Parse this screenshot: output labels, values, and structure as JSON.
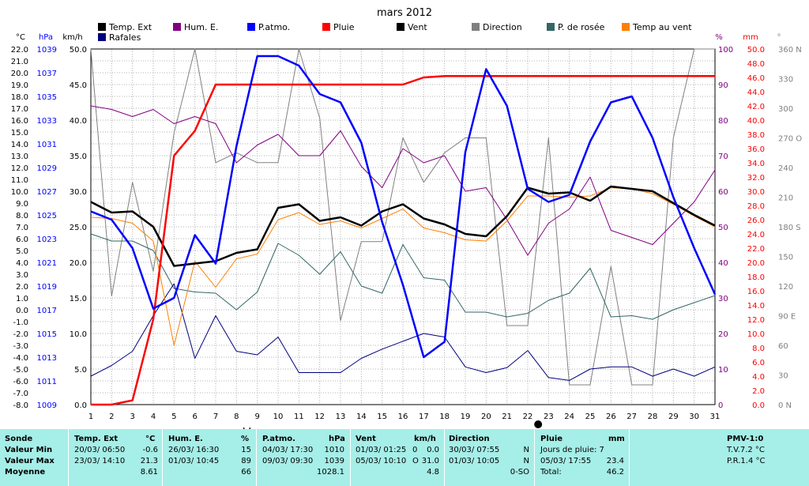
{
  "chart_data": {
    "type": "line",
    "title": "mars 2012",
    "x": [
      1,
      2,
      3,
      4,
      5,
      6,
      7,
      8,
      9,
      10,
      11,
      12,
      13,
      14,
      15,
      16,
      17,
      18,
      19,
      20,
      21,
      22,
      23,
      24,
      25,
      26,
      27,
      28,
      29,
      30,
      31
    ],
    "axes": {
      "temp_c": {
        "label": "°C",
        "range": [
          -8,
          22
        ],
        "ticks": [
          "22.0",
          "21.0",
          "20.0",
          "19.0",
          "18.0",
          "17.0",
          "16.0",
          "15.0",
          "14.0",
          "13.0",
          "12.0",
          "11.0",
          "10.0",
          "9.0",
          "8.0",
          "7.0",
          "6.0",
          "5.0",
          "4.0",
          "3.0",
          "2.0",
          "1.0",
          "0.0",
          "-1.0",
          "-2.0",
          "-3.0",
          "-4.0",
          "-5.0",
          "-6.0",
          "-7.0",
          "-8.0"
        ]
      },
      "press_hpa": {
        "label": "hPa",
        "range": [
          1009,
          1039
        ],
        "ticks": [
          "1039",
          "1037",
          "1035",
          "1033",
          "1031",
          "1029",
          "1027",
          "1025",
          "1023",
          "1021",
          "1019",
          "1017",
          "1015",
          "1013",
          "1011",
          "1009"
        ]
      },
      "wind_kmh": {
        "label": "km/h",
        "range": [
          0,
          50
        ],
        "ticks": [
          "50.0",
          "45.0",
          "40.0",
          "35.0",
          "30.0",
          "25.0",
          "20.0",
          "15.0",
          "10.0",
          "5.0",
          "0.0"
        ]
      },
      "hum_pct": {
        "label": "%",
        "range": [
          0,
          100
        ],
        "ticks": [
          "100",
          "90",
          "80",
          "70",
          "60",
          "50",
          "40",
          "30",
          "20",
          "10",
          "0"
        ]
      },
      "rain_mm": {
        "label": "mm",
        "range": [
          0,
          50
        ],
        "ticks": [
          "50.0",
          "48.0",
          "46.0",
          "44.0",
          "42.0",
          "40.0",
          "38.0",
          "36.0",
          "34.0",
          "32.0",
          "30.0",
          "28.0",
          "26.0",
          "24.0",
          "22.0",
          "20.0",
          "18.0",
          "16.0",
          "14.0",
          "12.0",
          "10.0",
          "8.0",
          "6.0",
          "4.0",
          "2.0",
          "0.0"
        ]
      },
      "dir_deg": {
        "label": "°",
        "range": [
          0,
          360
        ],
        "ticks": [
          "360 N",
          "330",
          "300",
          "270 O",
          "240",
          "210",
          "180 S",
          "150",
          "120",
          "90 E",
          "60",
          "30",
          "0 N"
        ]
      }
    },
    "series": [
      {
        "name": "Temp. Ext",
        "axis": "temp_c",
        "color": "#000000",
        "width": 2.5,
        "values": [
          9.1,
          8.2,
          8.3,
          7.0,
          3.7,
          3.9,
          4.1,
          4.8,
          5.1,
          8.6,
          8.9,
          7.5,
          7.8,
          7.1,
          8.3,
          8.9,
          7.7,
          7.2,
          6.4,
          6.2,
          7.9,
          10.3,
          9.8,
          9.9,
          9.2,
          10.4,
          10.2,
          10.0,
          9.0,
          8.0,
          7.1
        ]
      },
      {
        "name": "Rafales",
        "axis": "wind_kmh",
        "color": "#000080",
        "width": 1,
        "values": [
          4.0,
          5.5,
          7.5,
          12.5,
          17.0,
          6.5,
          12.5,
          7.5,
          7.0,
          9.5,
          4.5,
          4.5,
          4.5,
          6.5,
          7.8,
          8.9,
          10.0,
          9.5,
          5.3,
          4.5,
          5.2,
          7.6,
          3.8,
          3.4,
          5.0,
          5.3,
          5.3,
          4.0,
          5.0,
          4.0,
          5.3
        ]
      },
      {
        "name": "Hum. E.",
        "axis": "hum_pct",
        "color": "#800080",
        "width": 1,
        "values": [
          84,
          83,
          81,
          83,
          79,
          81,
          79,
          68,
          73,
          76,
          70,
          70,
          77,
          67,
          61,
          72,
          68,
          70,
          60,
          61,
          52,
          42,
          51,
          55,
          64,
          49,
          47,
          45,
          51,
          57,
          66
        ]
      },
      {
        "name": "P.atmo.",
        "axis": "press_hpa",
        "color": "#0000ff",
        "width": 2.5,
        "values": [
          1025.3,
          1024.6,
          1022.2,
          1017.1,
          1018.0,
          1023.3,
          1020.9,
          1030.8,
          1038.4,
          1038.4,
          1037.6,
          1035.2,
          1034.5,
          1031.1,
          1024.4,
          1019.1,
          1013.0,
          1014.3,
          1030.3,
          1037.3,
          1034.2,
          1027.2,
          1026.1,
          1026.7,
          1031.2,
          1034.5,
          1035.0,
          1031.5,
          1026.5,
          1022.2,
          1018.3
        ]
      },
      {
        "name": "Pluie",
        "axis": "rain_mm",
        "color": "#ff0000",
        "width": 2.5,
        "values": [
          0.0,
          0.0,
          0.6,
          12.0,
          35.0,
          38.5,
          45.0,
          45.0,
          45.0,
          45.0,
          45.0,
          45.0,
          45.0,
          45.0,
          45.0,
          45.0,
          46.0,
          46.2,
          46.2,
          46.2,
          46.2,
          46.2,
          46.2,
          46.2,
          46.2,
          46.2,
          46.2,
          46.2,
          46.2,
          46.2,
          46.2
        ]
      },
      {
        "name": "Direction",
        "axis": "dir_deg",
        "color": "#808080",
        "width": 1,
        "values": [
          360,
          110,
          225,
          135,
          275,
          360,
          245,
          255,
          245,
          245,
          360,
          290,
          85,
          165,
          165,
          270,
          225,
          255,
          270,
          270,
          80,
          80,
          270,
          20,
          20,
          140,
          20,
          20,
          270,
          360,
          360
        ]
      },
      {
        "name": "P. de rosée",
        "axis": "temp_c",
        "color": "#336666",
        "width": 1,
        "values": [
          6.4,
          5.8,
          5.8,
          5.0,
          1.8,
          1.5,
          1.4,
          0.0,
          1.5,
          5.6,
          4.6,
          3.0,
          4.9,
          2.0,
          1.4,
          5.5,
          2.7,
          2.5,
          -0.2,
          -0.2,
          -0.6,
          -0.3,
          0.8,
          1.4,
          3.5,
          -0.6,
          -0.5,
          -0.8,
          0.0,
          0.6,
          1.2
        ]
      },
      {
        "name": "Temp au vent",
        "axis": "temp_c",
        "color": "#ff8000",
        "width": 1,
        "values": [
          7.8,
          7.7,
          7.3,
          5.8,
          -3.0,
          4.1,
          1.9,
          4.3,
          4.7,
          7.6,
          8.2,
          7.2,
          7.5,
          6.9,
          7.7,
          8.5,
          6.9,
          6.5,
          5.9,
          5.8,
          7.5,
          9.6,
          9.6,
          9.5,
          9.6,
          10.3,
          10.2,
          9.8,
          8.9,
          7.9,
          7.0
        ]
      }
    ],
    "legend": [
      {
        "name": "Temp. Ext",
        "color": "#000000"
      },
      {
        "name": "Rafales",
        "color": "#000080"
      },
      {
        "name": "Hum. E.",
        "color": "#800080"
      },
      {
        "name": "P.atmo.",
        "color": "#0000ff"
      },
      {
        "name": "Pluie",
        "color": "#ff0000"
      },
      {
        "name": "Vent",
        "color": "#000000"
      },
      {
        "name": "Direction",
        "color": "#808080"
      },
      {
        "name": "P. de rosée",
        "color": "#336666"
      },
      {
        "name": "Temp au vent",
        "color": "#ff8000"
      }
    ],
    "moon_symbols": [
      {
        "day": 8.5,
        "symbol": "first-quarter"
      },
      {
        "day": 22.5,
        "symbol": "new-moon"
      }
    ],
    "grid": true
  },
  "table": {
    "row_labels": [
      "Sonde",
      "Valeur Min",
      "Valeur Max",
      "Moyenne"
    ],
    "columns": [
      {
        "header": "Temp. Ext",
        "unit": "°C",
        "min": {
          "when": "20/03/  06:50",
          "val": "-0.6"
        },
        "max": {
          "when": "23/03/  14:10",
          "val": "21.3"
        },
        "avg": "8.61"
      },
      {
        "header": "Hum. E.",
        "unit": "%",
        "min": {
          "when": "26/03/  16:30",
          "val": "15"
        },
        "max": {
          "when": "01/03/  10:45",
          "val": "89"
        },
        "avg": "66"
      },
      {
        "header": "P.atmo.",
        "unit": "hPa",
        "min": {
          "when": "04/03/  17:30",
          "val": "1010"
        },
        "max": {
          "when": "09/03/  09:30",
          "val": "1039"
        },
        "avg": "1028.1"
      },
      {
        "header": "Vent",
        "unit": "km/h",
        "min": {
          "when": "01/03/  01:25",
          "dir": "0",
          "val": "0.0"
        },
        "max": {
          "when": "05/03/  10:10",
          "dir": "O",
          "val": "31.0"
        },
        "avg": "4.8"
      },
      {
        "header": "Direction",
        "unit": "",
        "min": {
          "when": "30/03/  07:55",
          "val": "N"
        },
        "max": {
          "when": "01/03/  10:05",
          "val": "N"
        },
        "avg": "0-SO"
      },
      {
        "header": "Pluie",
        "unit": "mm",
        "min": {
          "when": "Jours de pluie: 7",
          "val": ""
        },
        "max": {
          "when": "05/03/  17:55",
          "val": "23.4"
        },
        "avg_label": "Total:",
        "avg": "46.2"
      }
    ],
    "pmv": {
      "title": "PMV-1:0",
      "tv": "T.V.7.2 °C",
      "pr": "P.R.1.4 °C"
    }
  }
}
